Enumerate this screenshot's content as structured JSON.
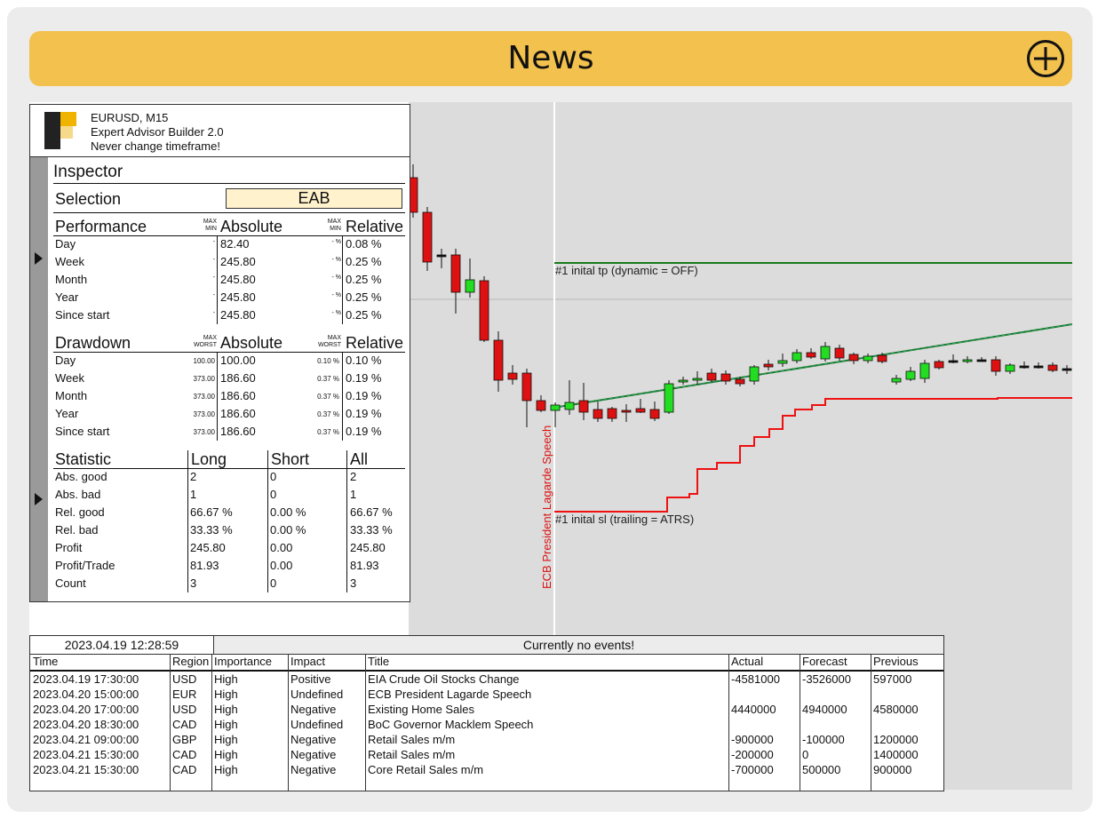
{
  "header": {
    "title": "News",
    "add_icon": "plus-circle-icon"
  },
  "instrument": {
    "line1": "EURUSD, M15",
    "line2": "Expert Advisor Builder 2.0",
    "line3": "Never change timeframe!"
  },
  "inspector": {
    "title": "Inspector",
    "selection_label": "Selection",
    "selection_value": "EAB",
    "performance": {
      "heading": "Performance",
      "max": "MAX",
      "min": "MIN",
      "abs_heading": "Absolute",
      "rel_heading": "Relative",
      "rows": [
        {
          "label": "Day",
          "abs": "82.40",
          "rel": "0.08 %"
        },
        {
          "label": "Week",
          "abs": "245.80",
          "rel": "0.25 %"
        },
        {
          "label": "Month",
          "abs": "245.80",
          "rel": "0.25 %"
        },
        {
          "label": "Year",
          "abs": "245.80",
          "rel": "0.25 %"
        },
        {
          "label": "Since start",
          "abs": "245.80",
          "rel": "0.25 %"
        }
      ]
    },
    "drawdown": {
      "heading": "Drawdown",
      "max": "MAX",
      "worst": "WORST",
      "abs_heading": "Absolute",
      "rel_heading": "Relative",
      "rows": [
        {
          "label": "Day",
          "worst_abs": "100.00",
          "abs": "100.00",
          "worst_rel": "0.10 %",
          "rel": "0.10 %"
        },
        {
          "label": "Week",
          "worst_abs": "373.00",
          "abs": "186.60",
          "worst_rel": "0.37 %",
          "rel": "0.19 %"
        },
        {
          "label": "Month",
          "worst_abs": "373.00",
          "abs": "186.60",
          "worst_rel": "0.37 %",
          "rel": "0.19 %"
        },
        {
          "label": "Year",
          "worst_abs": "373.00",
          "abs": "186.60",
          "worst_rel": "0.37 %",
          "rel": "0.19 %"
        },
        {
          "label": "Since start",
          "worst_abs": "373.00",
          "abs": "186.60",
          "worst_rel": "0.37 %",
          "rel": "0.19 %"
        }
      ]
    },
    "statistic": {
      "heading": "Statistic",
      "cols": [
        "Long",
        "Short",
        "All"
      ],
      "rows": [
        {
          "label": "Abs. good",
          "long": "2",
          "short": "0",
          "all": "2"
        },
        {
          "label": "Abs. bad",
          "long": "1",
          "short": "0",
          "all": "1"
        },
        {
          "label": "Rel. good",
          "long": "66.67 %",
          "short": "0.00 %",
          "all": "66.67 %"
        },
        {
          "label": "Rel. bad",
          "long": "33.33 %",
          "short": "0.00 %",
          "all": "33.33 %"
        },
        {
          "label": "Profit",
          "long": "245.80",
          "short": "0.00",
          "all": "245.80"
        },
        {
          "label": "Profit/Trade",
          "long": "81.93",
          "short": "0.00",
          "all": "81.93"
        },
        {
          "label": "Count",
          "long": "3",
          "short": "0",
          "all": "3"
        }
      ]
    }
  },
  "chart": {
    "tp_label": "#1 inital tp (dynamic = OFF)",
    "sl_label": "#1 inital sl (trailing = ATRS)",
    "event_label": "ECB President Lagarde Speech",
    "colors": {
      "bull": "#22dd22",
      "bear": "#dd1111",
      "tp": "#1a7a1a",
      "sl": "#ee1111",
      "trend": "#1a7a1a"
    }
  },
  "news": {
    "clock": "2023.04.19 12:28:59",
    "status": "Currently no events!",
    "columns": [
      "Time",
      "Region",
      "Importance",
      "Impact",
      "Title",
      "Actual",
      "Forecast",
      "Previous"
    ],
    "rows": [
      [
        "2023.04.19 17:30:00",
        "USD",
        "High",
        "Positive",
        "EIA Crude Oil Stocks Change",
        "-4581000",
        "-3526000",
        "597000"
      ],
      [
        "2023.04.20 15:00:00",
        "EUR",
        "High",
        "Undefined",
        "ECB President Lagarde Speech",
        "",
        "",
        ""
      ],
      [
        "2023.04.20 17:00:00",
        "USD",
        "High",
        "Negative",
        "Existing Home Sales",
        "4440000",
        "4940000",
        "4580000"
      ],
      [
        "2023.04.20 18:30:00",
        "CAD",
        "High",
        "Undefined",
        "BoC Governor Macklem Speech",
        "",
        "",
        ""
      ],
      [
        "2023.04.21 09:00:00",
        "GBP",
        "High",
        "Negative",
        "Retail Sales m/m",
        "-900000",
        "-100000",
        "1200000"
      ],
      [
        "2023.04.21 15:30:00",
        "CAD",
        "High",
        "Negative",
        "Retail Sales m/m",
        "-200000",
        "0",
        "1400000"
      ],
      [
        "2023.04.21 15:30:00",
        "CAD",
        "High",
        "Negative",
        "Core Retail Sales m/m",
        "-700000",
        "500000",
        "900000"
      ]
    ]
  }
}
